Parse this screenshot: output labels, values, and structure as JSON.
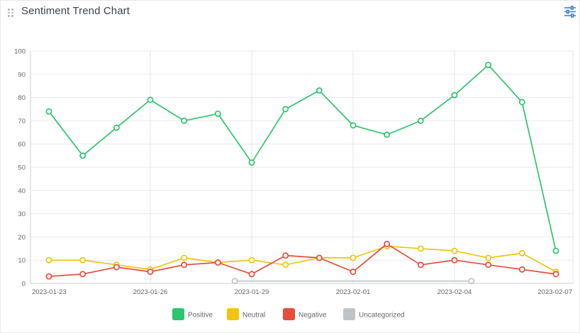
{
  "header": {
    "title": "Sentiment Trend Chart",
    "icons": {
      "drag": "drag-handle-icon",
      "settings": "sliders-settings-icon"
    }
  },
  "colors": {
    "Positive": "#2ec56c",
    "Neutral": "#f1c40f",
    "Negative": "#e74c3c",
    "Uncategorized": "#bdc3c7"
  },
  "chart_data": {
    "type": "line",
    "title": "Sentiment Trend Chart",
    "xlabel": "",
    "ylabel": "",
    "ylim": [
      0,
      100
    ],
    "yticks": [
      0,
      10,
      20,
      30,
      40,
      50,
      60,
      70,
      80,
      90,
      100
    ],
    "x_labels": [
      "2023-01-23",
      "2023-01-26",
      "2023-01-29",
      "2023-02-01",
      "2023-02-04",
      "2023-02-07"
    ],
    "x_label_days": [
      0,
      3,
      6,
      9,
      12,
      15
    ],
    "grid": true,
    "legend": "bottom",
    "series": [
      {
        "name": "Positive",
        "days": [
          0,
          1,
          2,
          3,
          4,
          5,
          6,
          7,
          8,
          9,
          10,
          11,
          12,
          13,
          14,
          15
        ],
        "values": [
          74,
          55,
          67,
          79,
          70,
          73,
          52,
          75,
          83,
          68,
          64,
          70,
          81,
          94,
          78,
          14
        ]
      },
      {
        "name": "Neutral",
        "days": [
          0,
          1,
          2,
          3,
          4,
          5,
          6,
          7,
          8,
          9,
          10,
          11,
          12,
          13,
          14,
          15
        ],
        "values": [
          10,
          10,
          8,
          6,
          11,
          9,
          10,
          8,
          11,
          11,
          16,
          15,
          14,
          11,
          13,
          5
        ]
      },
      {
        "name": "Negative",
        "days": [
          0,
          1,
          2,
          3,
          4,
          5,
          6,
          7,
          8,
          9,
          10,
          11,
          12,
          13,
          14,
          15
        ],
        "values": [
          3,
          4,
          7,
          5,
          8,
          9,
          4,
          12,
          11,
          5,
          17,
          8,
          10,
          8,
          6,
          4
        ]
      },
      {
        "name": "Uncategorized",
        "days": [
          5.5,
          12.5
        ],
        "values": [
          1,
          1
        ]
      }
    ]
  }
}
